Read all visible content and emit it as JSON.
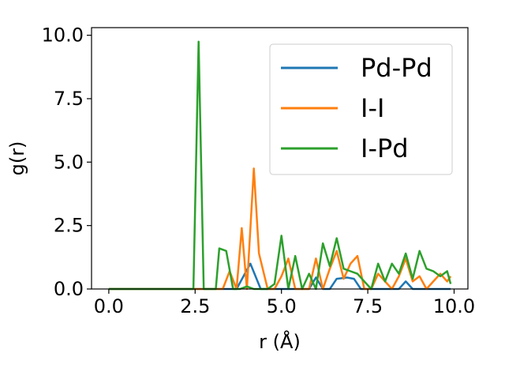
{
  "chart_data": {
    "type": "line",
    "title": "",
    "xlabel": "r (Å)",
    "ylabel": "g(r)",
    "xlim": [
      -0.5,
      10.4
    ],
    "ylim": [
      0,
      10.3
    ],
    "xticks": [
      0.0,
      2.5,
      5.0,
      7.5,
      10.0
    ],
    "yticks": [
      0.0,
      2.5,
      5.0,
      7.5,
      10.0
    ],
    "grid": false,
    "legend_position": "top-right",
    "series": [
      {
        "name": "Pd-Pd",
        "color": "#1f77b4",
        "x": [
          0,
          3.7,
          4.1,
          4.4,
          5.8,
          6.0,
          6.2,
          6.4,
          6.6,
          6.9,
          7.1,
          7.3,
          8.4,
          8.6,
          8.8,
          9.9
        ],
        "y": [
          0,
          0,
          1.0,
          0,
          0,
          0.45,
          0,
          0,
          0.4,
          0.45,
          0.4,
          0,
          0,
          0.3,
          0,
          0
        ]
      },
      {
        "name": "I-I",
        "color": "#ff7f0e",
        "x": [
          0,
          3.3,
          3.5,
          3.7,
          3.85,
          4.0,
          4.2,
          4.35,
          4.6,
          4.8,
          5.0,
          5.2,
          5.4,
          5.6,
          5.8,
          6.0,
          6.2,
          6.4,
          6.6,
          6.8,
          7.0,
          7.2,
          7.4,
          7.6,
          7.8,
          8.0,
          8.2,
          8.4,
          8.6,
          8.8,
          9.0,
          9.2,
          9.4,
          9.6,
          9.8,
          9.9
        ],
        "y": [
          0,
          0,
          0.7,
          0,
          2.4,
          0,
          4.75,
          1.4,
          0,
          0,
          0.5,
          1.2,
          0,
          0,
          0,
          1.2,
          0,
          0.8,
          1.5,
          0.4,
          1.0,
          1.3,
          0,
          0,
          0.6,
          0.3,
          0,
          0.5,
          1.2,
          0.3,
          0.5,
          0,
          0.3,
          0.6,
          0.3,
          0.5
        ]
      },
      {
        "name": "I-Pd",
        "color": "#2ca02c",
        "x": [
          0,
          2.45,
          2.6,
          2.75,
          3.1,
          3.2,
          3.4,
          3.6,
          3.8,
          4.0,
          4.2,
          4.4,
          4.6,
          4.8,
          5.0,
          5.2,
          5.4,
          5.6,
          5.8,
          6.0,
          6.2,
          6.4,
          6.6,
          6.8,
          7.0,
          7.2,
          7.4,
          7.6,
          7.8,
          8.0,
          8.2,
          8.4,
          8.6,
          8.8,
          9.0,
          9.2,
          9.4,
          9.6,
          9.8,
          9.9
        ],
        "y": [
          0,
          0,
          9.75,
          0,
          0,
          1.6,
          1.5,
          0,
          0,
          0.1,
          0,
          0,
          0,
          0.2,
          2.1,
          0,
          1.3,
          0,
          0.6,
          0,
          1.8,
          0.9,
          2.0,
          0.8,
          0.7,
          0.6,
          0.3,
          0,
          1.0,
          0.3,
          1.0,
          0.6,
          1.4,
          0.4,
          1.5,
          0.8,
          0.7,
          0.5,
          0.7,
          0.2
        ]
      }
    ]
  }
}
